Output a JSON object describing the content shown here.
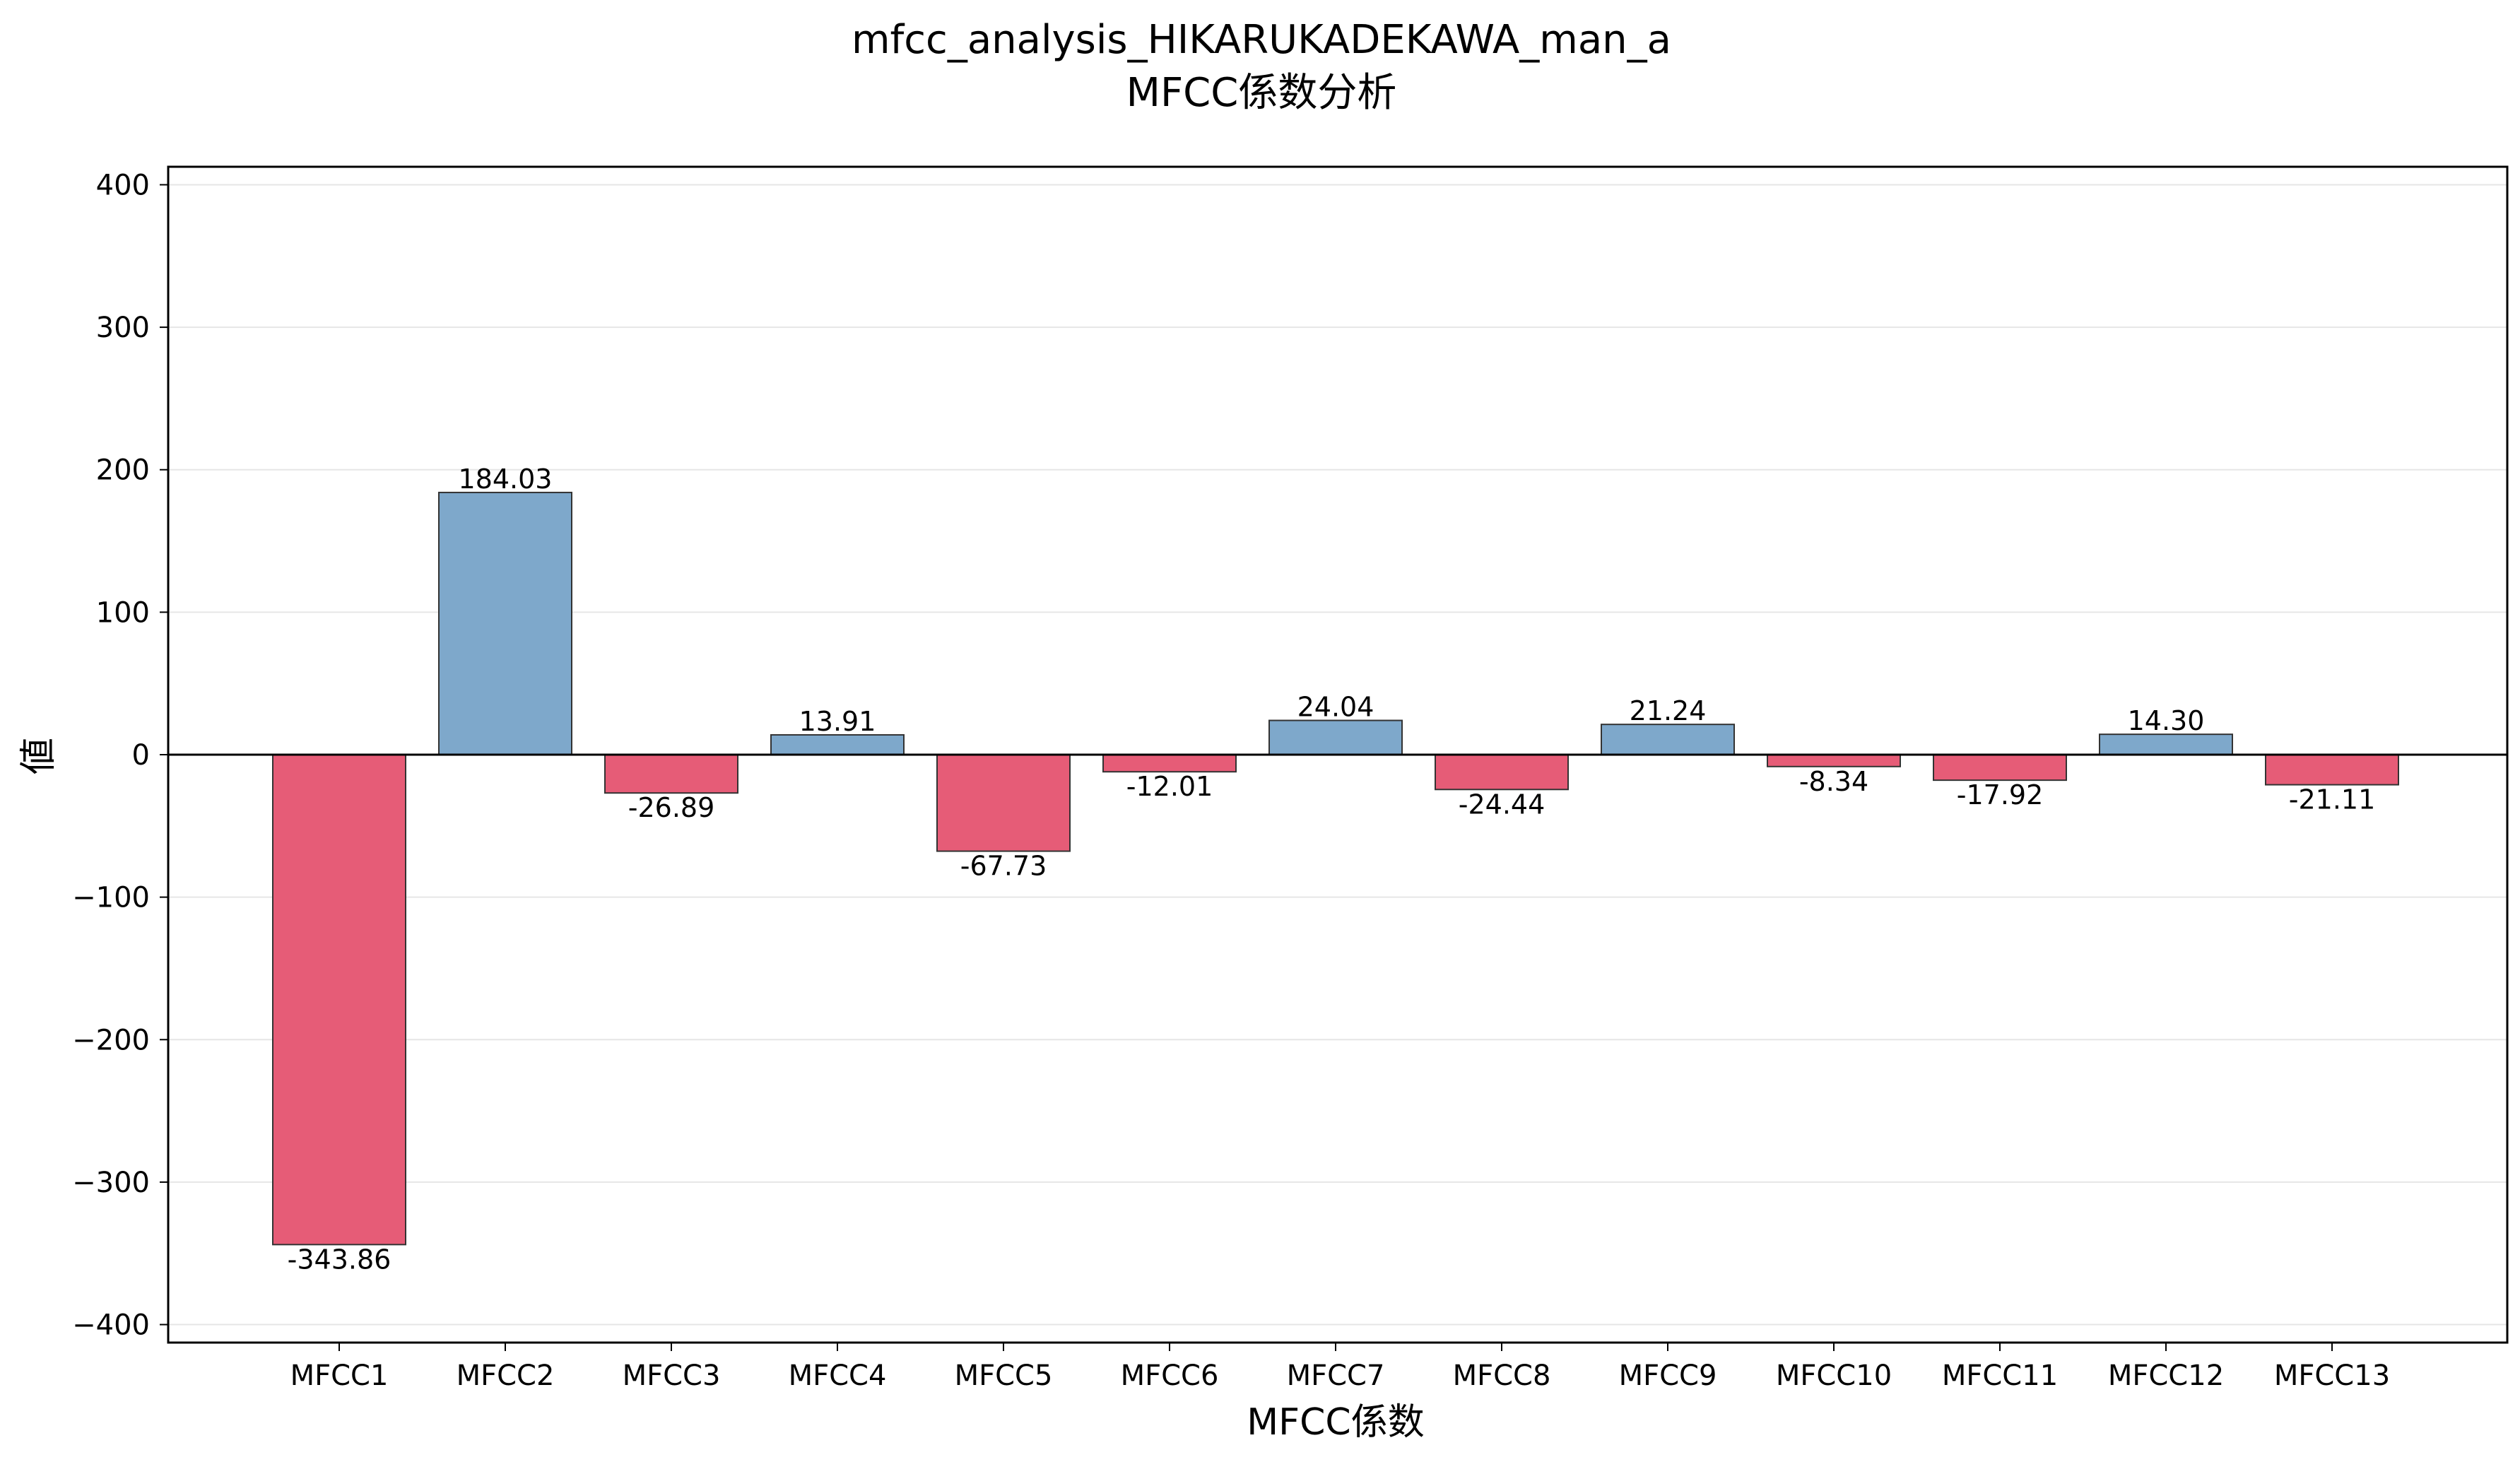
{
  "chart_data": {
    "type": "bar",
    "title": "mfcc_analysis_HIKARUKADEKAWA_man_a",
    "subtitle": "MFCC係数分析",
    "xlabel": "MFCC係数",
    "ylabel": "値",
    "categories": [
      "MFCC1",
      "MFCC2",
      "MFCC3",
      "MFCC4",
      "MFCC5",
      "MFCC6",
      "MFCC7",
      "MFCC8",
      "MFCC9",
      "MFCC10",
      "MFCC11",
      "MFCC12",
      "MFCC13"
    ],
    "values": [
      -343.86,
      184.03,
      -26.89,
      13.91,
      -67.73,
      -12.01,
      24.04,
      -24.44,
      21.24,
      -8.34,
      -17.92,
      14.3,
      -21.11
    ],
    "value_labels": [
      "-343.86",
      "184.03",
      "-26.89",
      "13.91",
      "-67.73",
      "-12.01",
      "24.04",
      "-24.44",
      "21.24",
      "-8.34",
      "-17.92",
      "14.30",
      "-21.11"
    ],
    "ylim": [
      -412.63,
      412.63
    ],
    "yticks": [
      -400,
      -300,
      -200,
      -100,
      0,
      100,
      200,
      300,
      400
    ],
    "ytick_labels": [
      "−400",
      "−300",
      "−200",
      "−100",
      "0",
      "100",
      "200",
      "300",
      "400"
    ],
    "grid": "horizontal",
    "legend": "none",
    "colors": {
      "positive": "#7ea8cb",
      "negative": "#e65c77",
      "edge": "#333333",
      "zero_line": "#000000",
      "grid": "#e6e6e6"
    }
  }
}
